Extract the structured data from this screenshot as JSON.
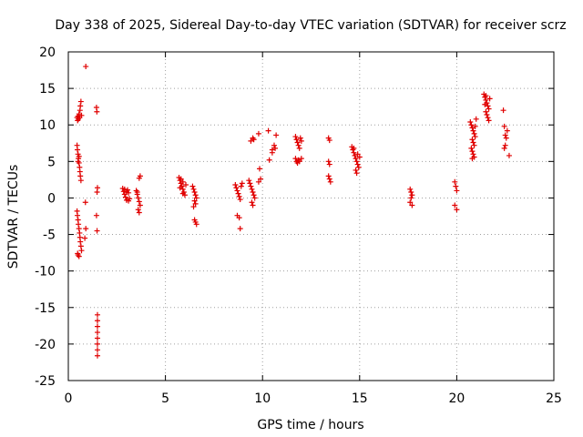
{
  "chart_data": {
    "type": "scatter",
    "title": "Day 338 of 2025, Sidereal Day-to-day VTEC variation (SDTVAR) for receiver scrz",
    "xlabel": "GPS time / hours",
    "ylabel": "SDTVAR / TECUs",
    "xlim": [
      0,
      25
    ],
    "ylim": [
      -25,
      20
    ],
    "xticks": [
      0,
      5,
      10,
      15,
      20,
      25
    ],
    "yticks": [
      -25,
      -20,
      -15,
      -10,
      -5,
      0,
      5,
      10,
      15,
      20
    ],
    "grid": true,
    "marker": "+",
    "color": "#e00000",
    "series": [
      {
        "name": "SDTVAR",
        "points": [
          [
            0.45,
            11.0
          ],
          [
            0.48,
            10.6
          ],
          [
            0.5,
            11.2
          ],
          [
            0.52,
            10.8
          ],
          [
            0.55,
            11.5
          ],
          [
            0.58,
            11.0
          ],
          [
            0.6,
            12.0
          ],
          [
            0.62,
            12.6
          ],
          [
            0.65,
            13.2
          ],
          [
            0.68,
            11.3
          ],
          [
            0.45,
            7.2
          ],
          [
            0.47,
            6.6
          ],
          [
            0.5,
            6.0
          ],
          [
            0.52,
            5.4
          ],
          [
            0.55,
            4.8
          ],
          [
            0.58,
            4.2
          ],
          [
            0.6,
            3.6
          ],
          [
            0.62,
            3.0
          ],
          [
            0.65,
            2.4
          ],
          [
            0.5,
            5.0
          ],
          [
            0.55,
            5.7
          ],
          [
            0.45,
            -1.8
          ],
          [
            0.47,
            -2.4
          ],
          [
            0.5,
            -3.0
          ],
          [
            0.52,
            -3.6
          ],
          [
            0.55,
            -4.2
          ],
          [
            0.58,
            -4.8
          ],
          [
            0.6,
            -5.4
          ],
          [
            0.62,
            -6.0
          ],
          [
            0.65,
            -6.6
          ],
          [
            0.68,
            -7.2
          ],
          [
            0.5,
            -7.8
          ],
          [
            0.55,
            -8.0
          ],
          [
            0.48,
            -7.6
          ],
          [
            0.85,
            -5.5
          ],
          [
            0.9,
            -4.2
          ],
          [
            0.88,
            -0.6
          ],
          [
            0.9,
            18.0
          ],
          [
            1.45,
            12.4
          ],
          [
            1.47,
            11.8
          ],
          [
            1.5,
            1.4
          ],
          [
            1.48,
            0.8
          ],
          [
            1.45,
            -2.4
          ],
          [
            1.48,
            -4.5
          ],
          [
            1.5,
            -16.0
          ],
          [
            1.5,
            -16.8
          ],
          [
            1.5,
            -17.6
          ],
          [
            1.5,
            -18.4
          ],
          [
            1.5,
            -19.2
          ],
          [
            1.5,
            -20.0
          ],
          [
            1.5,
            -20.8
          ],
          [
            1.5,
            -21.6
          ],
          [
            2.8,
            1.3
          ],
          [
            2.85,
            0.9
          ],
          [
            2.9,
            0.5
          ],
          [
            2.95,
            0.1
          ],
          [
            3.0,
            -0.3
          ],
          [
            3.05,
            1.1
          ],
          [
            3.1,
            0.7
          ],
          [
            3.15,
            -0.1
          ],
          [
            2.9,
            1.2
          ],
          [
            3.0,
            0.8
          ],
          [
            3.1,
            -0.4
          ],
          [
            3.5,
            1.0
          ],
          [
            3.55,
            0.5
          ],
          [
            3.6,
            0.0
          ],
          [
            3.65,
            -0.5
          ],
          [
            3.7,
            -1.0
          ],
          [
            3.6,
            -1.6
          ],
          [
            3.65,
            -2.0
          ],
          [
            3.55,
            0.8
          ],
          [
            3.7,
            3.0
          ],
          [
            3.65,
            2.7
          ],
          [
            5.7,
            2.8
          ],
          [
            5.75,
            2.4
          ],
          [
            5.8,
            2.0
          ],
          [
            5.85,
            1.6
          ],
          [
            5.9,
            1.2
          ],
          [
            5.95,
            0.8
          ],
          [
            6.0,
            0.4
          ],
          [
            5.8,
            2.6
          ],
          [
            5.9,
            2.2
          ],
          [
            6.05,
            1.8
          ],
          [
            5.75,
            1.4
          ],
          [
            5.9,
            0.6
          ],
          [
            6.4,
            1.6
          ],
          [
            6.45,
            1.2
          ],
          [
            6.5,
            0.8
          ],
          [
            6.55,
            0.4
          ],
          [
            6.6,
            0.0
          ],
          [
            6.5,
            -0.4
          ],
          [
            6.55,
            -0.8
          ],
          [
            6.45,
            -1.2
          ],
          [
            6.5,
            -3.0
          ],
          [
            6.55,
            -3.3
          ],
          [
            6.6,
            -3.6
          ],
          [
            8.6,
            1.8
          ],
          [
            8.65,
            1.4
          ],
          [
            8.7,
            1.0
          ],
          [
            8.75,
            0.6
          ],
          [
            8.8,
            0.2
          ],
          [
            8.85,
            -0.2
          ],
          [
            8.9,
            1.6
          ],
          [
            8.95,
            2.0
          ],
          [
            8.7,
            -2.4
          ],
          [
            8.8,
            -2.7
          ],
          [
            8.85,
            -4.2
          ],
          [
            9.3,
            2.4
          ],
          [
            9.35,
            2.0
          ],
          [
            9.4,
            1.6
          ],
          [
            9.45,
            1.2
          ],
          [
            9.5,
            0.8
          ],
          [
            9.55,
            0.4
          ],
          [
            9.6,
            0.0
          ],
          [
            9.45,
            -0.6
          ],
          [
            9.5,
            -1.0
          ],
          [
            9.4,
            7.8
          ],
          [
            9.5,
            8.2
          ],
          [
            9.55,
            8.0
          ],
          [
            9.8,
            8.8
          ],
          [
            9.85,
            4.0
          ],
          [
            9.9,
            2.6
          ],
          [
            9.8,
            2.2
          ],
          [
            10.3,
            9.2
          ],
          [
            10.35,
            5.2
          ],
          [
            10.5,
            6.6
          ],
          [
            10.6,
            7.2
          ],
          [
            10.65,
            6.8
          ],
          [
            10.7,
            8.6
          ],
          [
            10.5,
            6.2
          ],
          [
            11.7,
            8.4
          ],
          [
            11.75,
            8.0
          ],
          [
            11.8,
            7.6
          ],
          [
            11.85,
            7.2
          ],
          [
            11.9,
            6.8
          ],
          [
            11.95,
            8.2
          ],
          [
            12.0,
            7.8
          ],
          [
            11.7,
            5.4
          ],
          [
            11.75,
            5.0
          ],
          [
            11.8,
            4.8
          ],
          [
            11.85,
            5.2
          ],
          [
            11.9,
            5.0
          ],
          [
            12.0,
            5.4
          ],
          [
            13.4,
            8.2
          ],
          [
            13.45,
            7.9
          ],
          [
            13.4,
            5.0
          ],
          [
            13.45,
            4.6
          ],
          [
            13.4,
            3.0
          ],
          [
            13.45,
            2.6
          ],
          [
            13.5,
            2.2
          ],
          [
            14.6,
            7.0
          ],
          [
            14.65,
            6.6
          ],
          [
            14.7,
            6.2
          ],
          [
            14.75,
            5.8
          ],
          [
            14.8,
            5.4
          ],
          [
            14.85,
            5.0
          ],
          [
            14.9,
            4.6
          ],
          [
            14.95,
            4.2
          ],
          [
            14.8,
            3.8
          ],
          [
            14.85,
            3.4
          ],
          [
            14.7,
            6.8
          ],
          [
            14.9,
            6.0
          ],
          [
            15.0,
            5.6
          ],
          [
            17.6,
            1.2
          ],
          [
            17.65,
            0.8
          ],
          [
            17.7,
            0.4
          ],
          [
            17.65,
            0.0
          ],
          [
            17.6,
            -0.6
          ],
          [
            17.7,
            -1.0
          ],
          [
            19.9,
            2.2
          ],
          [
            19.95,
            1.6
          ],
          [
            20.0,
            1.0
          ],
          [
            19.9,
            -1.0
          ],
          [
            20.0,
            -1.6
          ],
          [
            20.7,
            10.4
          ],
          [
            20.75,
            10.0
          ],
          [
            20.8,
            9.6
          ],
          [
            20.85,
            9.2
          ],
          [
            20.9,
            8.8
          ],
          [
            20.95,
            8.4
          ],
          [
            20.8,
            8.0
          ],
          [
            20.85,
            7.6
          ],
          [
            20.9,
            7.2
          ],
          [
            20.75,
            6.8
          ],
          [
            20.8,
            6.4
          ],
          [
            20.85,
            6.0
          ],
          [
            20.9,
            5.6
          ],
          [
            21.0,
            10.8
          ],
          [
            20.95,
            9.8
          ],
          [
            20.8,
            5.4
          ],
          [
            21.4,
            14.2
          ],
          [
            21.45,
            13.8
          ],
          [
            21.5,
            13.4
          ],
          [
            21.55,
            13.0
          ],
          [
            21.6,
            12.6
          ],
          [
            21.65,
            12.2
          ],
          [
            21.5,
            11.8
          ],
          [
            21.55,
            11.4
          ],
          [
            21.6,
            11.0
          ],
          [
            21.65,
            10.6
          ],
          [
            21.5,
            14.0
          ],
          [
            21.7,
            13.6
          ],
          [
            21.45,
            12.8
          ],
          [
            22.4,
            12.0
          ],
          [
            22.45,
            9.8
          ],
          [
            22.5,
            8.6
          ],
          [
            22.55,
            8.2
          ],
          [
            22.6,
            9.2
          ],
          [
            22.5,
            7.2
          ],
          [
            22.45,
            6.8
          ],
          [
            22.7,
            5.8
          ]
        ]
      }
    ]
  }
}
